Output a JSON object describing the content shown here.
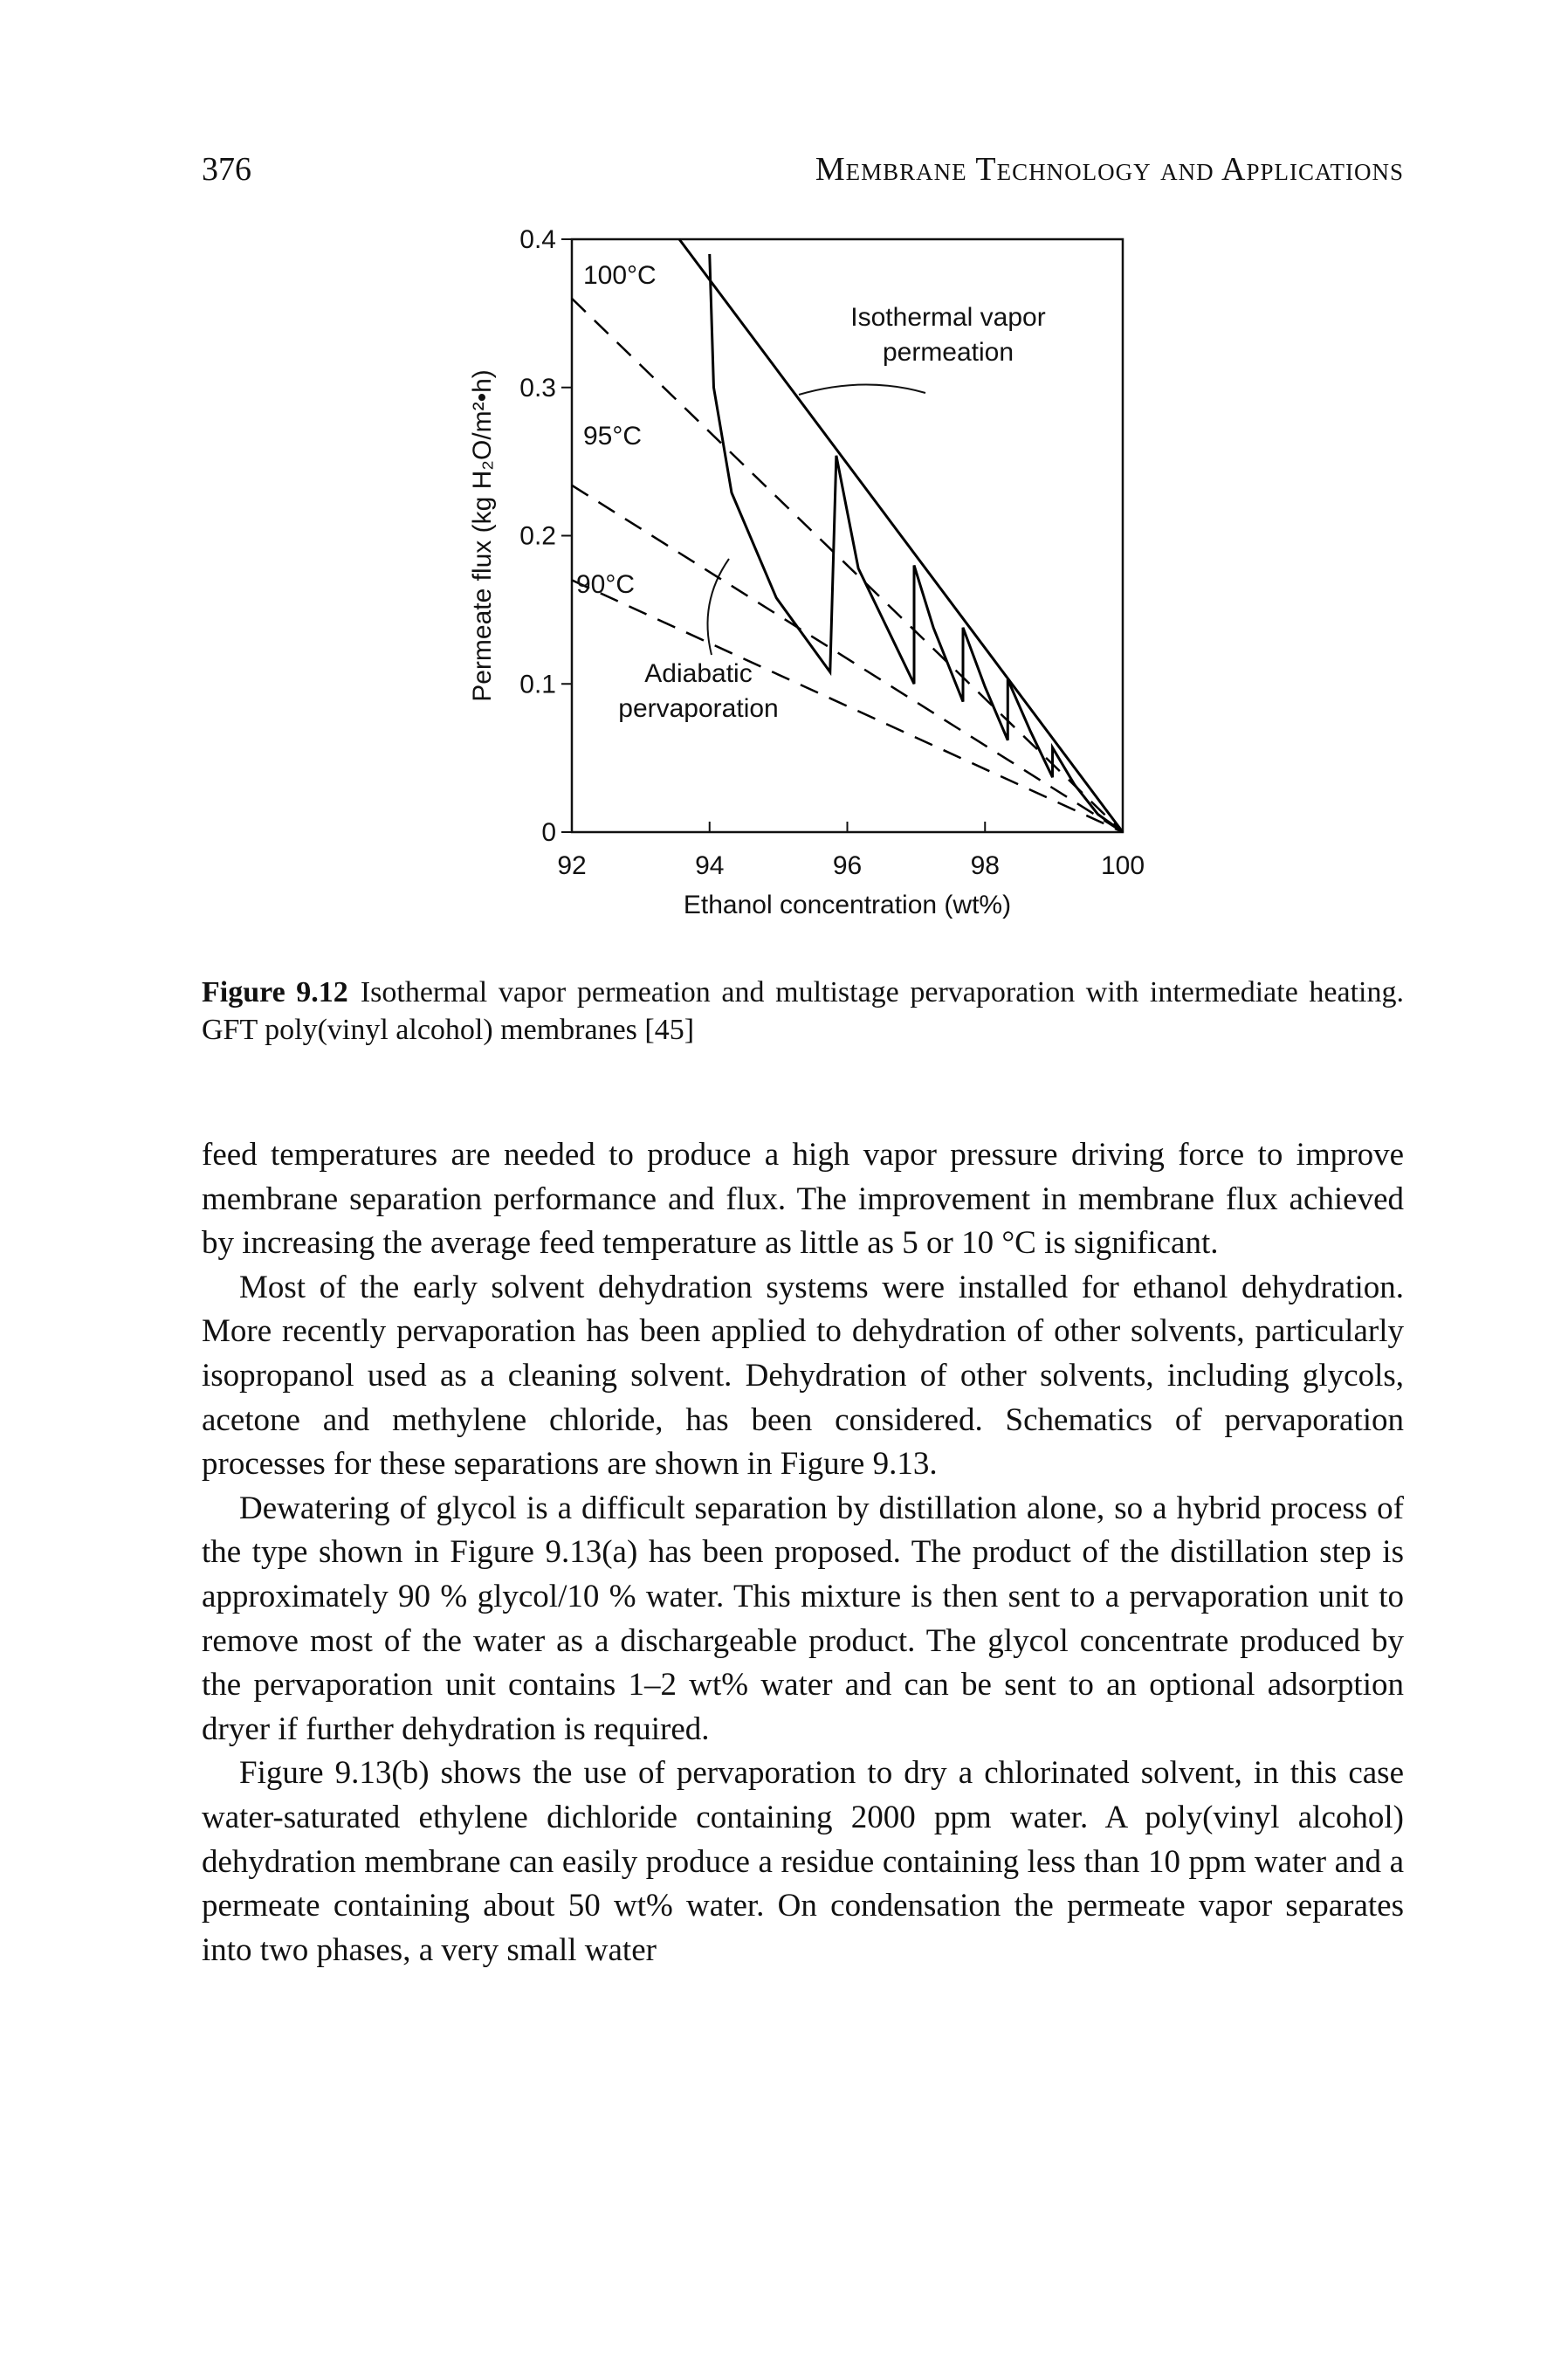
{
  "header": {
    "page_number": "376",
    "running_title": "Membrane Technology and Applications"
  },
  "chart_data": {
    "type": "line",
    "x_label": "Ethanol concentration (wt%)",
    "y_label": "Permeate flux (kg H₂O/m²•h)",
    "xlim": [
      92,
      100
    ],
    "ylim": [
      0,
      0.4
    ],
    "xticks": [
      92,
      94,
      96,
      98,
      100
    ],
    "yticks": [
      0,
      0.1,
      0.2,
      0.3,
      0.4
    ],
    "series": [
      {
        "name": "Isothermal vapor permeation",
        "color": "#000000",
        "dashed": false,
        "x": [
          93.56,
          100
        ],
        "values": [
          0.4,
          0
        ]
      },
      {
        "name": "100°C",
        "color": "#000000",
        "dashed": true,
        "x": [
          92,
          100
        ],
        "values": [
          0.36,
          0
        ]
      },
      {
        "name": "95°C",
        "color": "#000000",
        "dashed": true,
        "x": [
          92,
          100
        ],
        "values": [
          0.234,
          0
        ]
      },
      {
        "name": "90°C",
        "color": "#000000",
        "dashed": true,
        "x": [
          92,
          100
        ],
        "values": [
          0.17,
          0
        ]
      },
      {
        "name": "Adiabatic pervaporation",
        "color": "#000000",
        "dashed": false,
        "x": [
          94.0,
          94.06,
          94.32,
          94.97,
          95.75,
          95.84,
          96.16,
          96.97,
          96.97,
          97.25,
          97.68,
          97.68,
          98.0,
          98.33,
          98.33,
          98.66,
          98.98,
          98.98,
          99.3,
          99.64,
          100
        ],
        "values": [
          0.39,
          0.3,
          0.229,
          0.158,
          0.108,
          0.254,
          0.178,
          0.1,
          0.18,
          0.138,
          0.088,
          0.138,
          0.098,
          0.062,
          0.103,
          0.068,
          0.037,
          0.057,
          0.032,
          0.012,
          0
        ]
      }
    ]
  },
  "caption": {
    "label": "Figure 9.12",
    "text": "Isothermal vapor permeation and multistage pervaporation with intermediate heating. GFT poly(vinyl alcohol) membranes [45]"
  },
  "body": {
    "paragraphs": [
      "feed temperatures are needed to produce a high vapor pressure driving force to improve membrane separation performance and flux. The improvement in membrane flux achieved by increasing the average feed temperature as little as 5 or 10 °C is significant.",
      "Most of the early solvent dehydration systems were installed for ethanol dehydration. More recently pervaporation has been applied to dehydration of other solvents, particularly isopropanol used as a cleaning solvent. Dehydration of other solvents, including glycols, acetone and methylene chloride, has been considered. Schematics of pervaporation processes for these separations are shown in Figure 9.13.",
      "Dewatering of glycol is a difficult separation by distillation alone, so a hybrid process of the type shown in Figure 9.13(a) has been proposed. The product of the distillation step is approximately 90 % glycol/10 % water. This mixture is then sent to a pervaporation unit to remove most of the water as a dischargeable product. The glycol concentrate produced by the pervaporation unit contains 1–2 wt% water and can be sent to an optional adsorption dryer if further dehydration is required.",
      "Figure 9.13(b) shows the use of pervaporation to dry a chlorinated solvent, in this case water-saturated ethylene dichloride containing 2000 ppm water. A poly(vinyl alcohol) dehydration membrane can easily produce a residue containing less than 10 ppm water and a permeate containing about 50 wt% water. On condensation the permeate vapor separates into two phases, a very small water"
    ]
  }
}
